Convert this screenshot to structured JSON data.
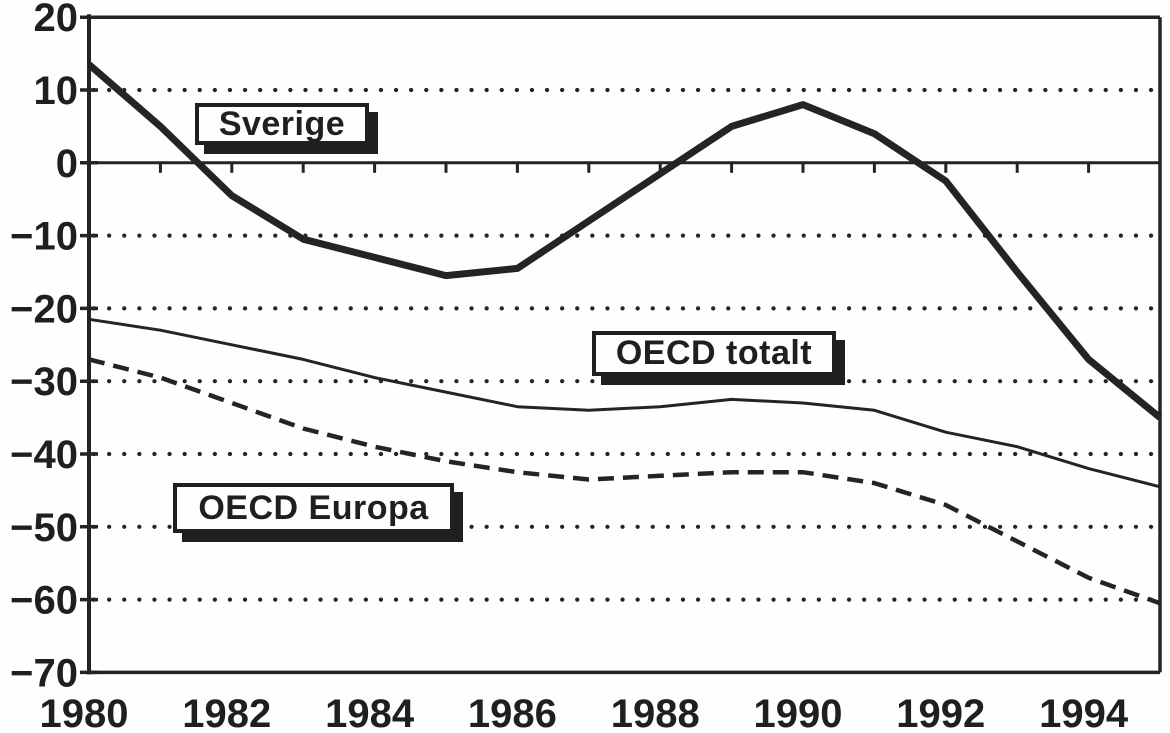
{
  "chart_data": {
    "type": "line",
    "title": "",
    "xlabel": "",
    "ylabel": "",
    "x_range": [
      1980,
      1995
    ],
    "y_range": [
      -70,
      20
    ],
    "grid": "dotted horizontal lines every 10 units (zero line solid); yearly tick marks hang below the zero line; plot fully framed",
    "legend_position": "inline label boxes with drop shadows",
    "x": [
      1980,
      1981,
      1982,
      1983,
      1984,
      1985,
      1986,
      1987,
      1988,
      1989,
      1990,
      1991,
      1992,
      1993,
      1994,
      1995
    ],
    "x_ticks": [
      1980,
      1982,
      1984,
      1986,
      1988,
      1990,
      1992,
      1994
    ],
    "x_tick_labels": [
      "1980",
      "1982",
      "1984",
      "1986",
      "1988",
      "1990",
      "1992",
      "1994"
    ],
    "y_ticks": [
      20,
      10,
      0,
      -10,
      -20,
      -30,
      -40,
      -50,
      -60,
      -70
    ],
    "y_tick_labels": [
      "20",
      "10",
      "0",
      "−10",
      "−20",
      "−30",
      "−40",
      "−50",
      "−60",
      "−70"
    ],
    "dotted_gridline_values": [
      10,
      -10,
      -20,
      -30,
      -40,
      -50,
      -60
    ],
    "series": [
      {
        "name": "Sverige",
        "style": "thick-solid",
        "values": [
          13.5,
          5,
          -4.5,
          -10.5,
          -13,
          -15.5,
          -14.5,
          -8,
          -1.5,
          5,
          8,
          4,
          -2.5,
          -15,
          -27,
          -35
        ]
      },
      {
        "name": "OECD totalt",
        "style": "thin-solid",
        "values": [
          -21.5,
          -23,
          -25,
          -27,
          -29.5,
          -31.5,
          -33.5,
          -34,
          -33.5,
          -32.5,
          -33,
          -34,
          -37,
          -39,
          -42,
          -44.5
        ]
      },
      {
        "name": "OECD Europa",
        "style": "dashed",
        "values": [
          -27,
          -29.5,
          -33,
          -36.5,
          -39,
          -41,
          -42.5,
          -43.5,
          -43,
          -42.5,
          -42.5,
          -44,
          -47,
          -52,
          -57,
          -60.5
        ]
      }
    ],
    "annotations": [
      {
        "label": "Sverige"
      },
      {
        "label": "OECD totalt"
      },
      {
        "label": "OECD Europa"
      }
    ],
    "ink_color": "#242424",
    "background_color": "#fefefe"
  }
}
